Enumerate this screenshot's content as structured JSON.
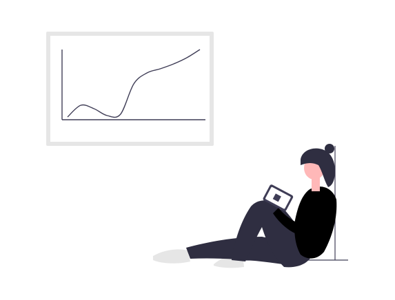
{
  "scene": {
    "subject": "person-sitting-reading-phone",
    "colors": {
      "background": "#ffffff",
      "frame": "#e6e6e6",
      "chart_line": "#3f3d56",
      "pants": "#2f2e41",
      "shirt": "#000000",
      "skin": "#ffb8b8",
      "hair": "#2f2e41",
      "shoes": "#e6e6e6",
      "phone": "#3f3d56",
      "phone_screen": "#ffffff",
      "floor": "#3f3d56"
    },
    "icons": [
      "chart-frame-icon",
      "person-illustration-icon",
      "phone-icon"
    ]
  },
  "chart_data": {
    "type": "line",
    "title": "",
    "xlabel": "",
    "ylabel": "",
    "grid": false,
    "legend": "none",
    "x": [
      0,
      10,
      20,
      30,
      40,
      50,
      60,
      70,
      80,
      90,
      100
    ],
    "series": [
      {
        "values": [
          2,
          19,
          14,
          4,
          6,
          50,
          66,
          72,
          79,
          88,
          100
        ]
      }
    ],
    "xlim": [
      0,
      100
    ],
    "ylim": [
      0,
      100
    ]
  }
}
